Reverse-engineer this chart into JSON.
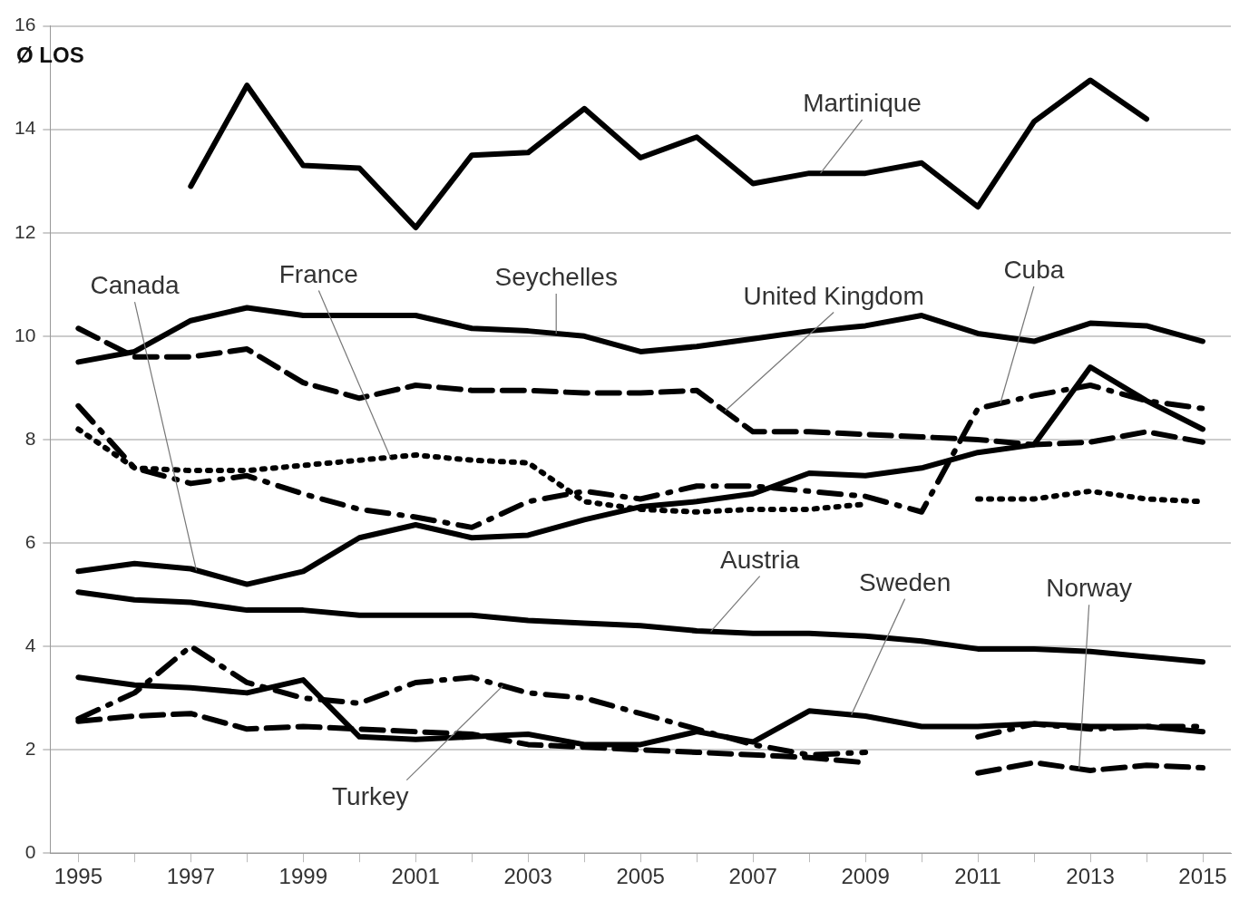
{
  "chart_data": {
    "type": "line",
    "ylabel": "Ø LOS",
    "x": [
      1995,
      1996,
      1997,
      1998,
      1999,
      2000,
      2001,
      2002,
      2003,
      2004,
      2005,
      2006,
      2007,
      2008,
      2009,
      2010,
      2011,
      2012,
      2013,
      2014,
      2015
    ],
    "xlim": [
      1994.5,
      2015.5
    ],
    "xticks": [
      1995,
      {
        "value": 1996,
        "label": null
      },
      1997,
      {
        "value": 1998,
        "label": null
      },
      1999,
      {
        "value": 2000,
        "label": null
      },
      2001,
      {
        "value": 2002,
        "label": null
      },
      2003,
      {
        "value": 2004,
        "label": null
      },
      2005,
      {
        "value": 2006,
        "label": null
      },
      2007,
      {
        "value": 2008,
        "label": null
      },
      2009,
      {
        "value": 2010,
        "label": null
      },
      2011,
      {
        "value": 2012,
        "label": null
      },
      2013,
      {
        "value": 2014,
        "label": null
      },
      2015
    ],
    "ylim": [
      0,
      16
    ],
    "yticks": [
      0,
      2,
      4,
      6,
      8,
      10,
      12,
      14,
      16
    ],
    "grid": "y",
    "legend": false,
    "marker": "none",
    "series": [
      {
        "name": "Martinique",
        "color": "#000000",
        "line_style": "solid",
        "values": [
          null,
          null,
          12.9,
          14.85,
          13.3,
          13.25,
          12.1,
          13.5,
          13.55,
          14.4,
          13.45,
          13.85,
          12.95,
          13.15,
          13.15,
          13.35,
          12.5,
          14.15,
          14.95,
          14.2,
          null
        ]
      },
      {
        "name": "Seychelles",
        "color": "#000000",
        "line_style": "solid",
        "values": [
          9.5,
          9.7,
          10.3,
          10.55,
          10.4,
          10.4,
          10.4,
          10.15,
          10.1,
          10,
          9.7,
          9.8,
          9.95,
          10.1,
          10.2,
          10.4,
          10.05,
          9.9,
          10.25,
          10.2,
          9.9
        ]
      },
      {
        "name": "United Kingdom",
        "color": "#000000",
        "line_style": "dashed",
        "values": [
          10.15,
          9.6,
          9.6,
          9.75,
          9.1,
          8.8,
          9.05,
          8.95,
          8.95,
          8.9,
          8.9,
          8.95,
          8.15,
          8.15,
          8.1,
          8.05,
          8,
          7.9,
          7.95,
          8.15,
          7.95
        ]
      },
      {
        "name": "Canada",
        "color": "#000000",
        "line_style": "solid",
        "values": [
          5.45,
          5.6,
          5.5,
          5.2,
          5.45,
          6.1,
          6.35,
          6.1,
          6.15,
          6.45,
          6.7,
          6.8,
          6.95,
          7.35,
          7.3,
          7.45,
          7.75,
          7.9,
          9.4,
          8.75,
          8.2
        ]
      },
      {
        "name": "France",
        "color": "#000000",
        "line_style": "dotted",
        "values": [
          8.2,
          7.45,
          7.4,
          7.4,
          7.5,
          7.6,
          7.7,
          7.6,
          7.55,
          6.8,
          6.65,
          6.6,
          6.65,
          6.65,
          6.75,
          null,
          6.85,
          6.85,
          7,
          6.85,
          6.8
        ]
      },
      {
        "name": "Cuba",
        "color": "#000000",
        "line_style": "dashdot",
        "values": [
          8.65,
          7.45,
          7.15,
          7.3,
          6.95,
          6.65,
          6.5,
          6.3,
          6.8,
          7,
          6.85,
          7.1,
          7.1,
          7,
          6.9,
          6.6,
          8.6,
          8.85,
          9.05,
          8.75,
          8.6
        ]
      },
      {
        "name": "Austria",
        "color": "#000000",
        "line_style": "solid",
        "values": [
          5.05,
          4.9,
          4.85,
          4.7,
          4.7,
          4.6,
          4.6,
          4.6,
          4.5,
          4.45,
          4.4,
          4.3,
          4.25,
          4.25,
          4.2,
          4.1,
          3.95,
          3.95,
          3.9,
          3.8,
          3.7
        ]
      },
      {
        "name": "Sweden",
        "color": "#000000",
        "line_style": "solid",
        "values": [
          3.4,
          3.25,
          3.2,
          3.1,
          3.35,
          2.25,
          2.2,
          2.25,
          2.3,
          2.1,
          2.1,
          2.35,
          2.15,
          2.75,
          2.65,
          2.45,
          2.45,
          2.5,
          2.45,
          2.45,
          2.35
        ]
      },
      {
        "name": "Turkey",
        "color": "#000000",
        "line_style": "dashdot",
        "values": [
          2.6,
          3.1,
          4,
          3.3,
          3,
          2.9,
          3.3,
          3.4,
          3.1,
          3,
          2.7,
          2.4,
          2.1,
          1.9,
          1.95,
          null,
          2.25,
          2.5,
          2.4,
          2.45,
          2.45
        ]
      },
      {
        "name": "Norway",
        "color": "#000000",
        "line_style": "dashed",
        "values": [
          2.55,
          2.65,
          2.7,
          2.4,
          2.45,
          2.4,
          2.35,
          2.3,
          2.1,
          2.05,
          2,
          1.95,
          1.9,
          1.85,
          1.75,
          null,
          1.55,
          1.75,
          1.6,
          1.7,
          1.65
        ]
      }
    ]
  }
}
